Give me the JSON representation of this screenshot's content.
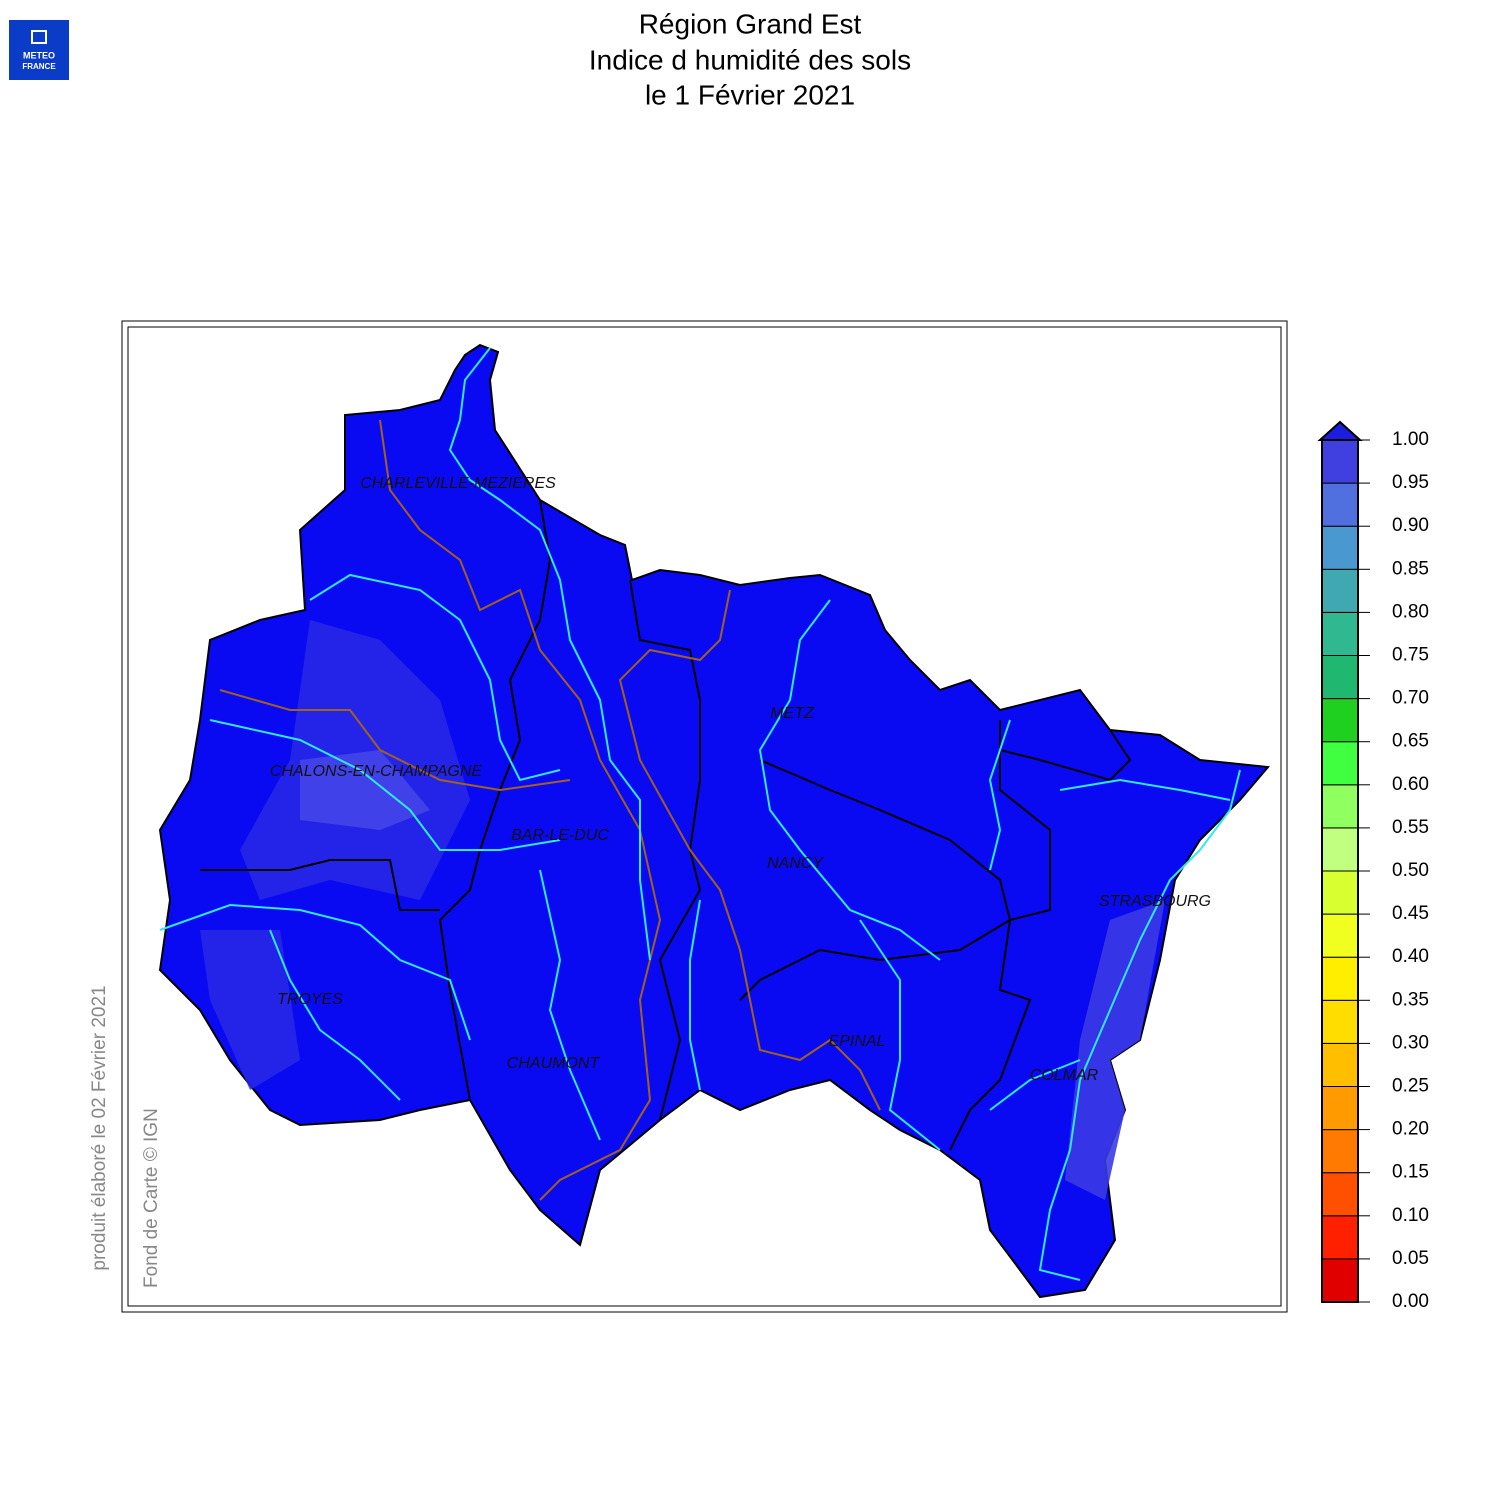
{
  "logo": [
    "METEO",
    "FRANCE"
  ],
  "title": [
    "Région Grand Est",
    "Indice d humidité des sols",
    "le 1 Février 2021"
  ],
  "cities": [
    "CHARLEVILLE-MEZIERES",
    "METZ",
    "CHALONS-EN-CHAMPAGNE",
    "BAR-LE-DUC",
    "NANCY",
    "STRASBOURG",
    "TROYES",
    "CHAUMONT",
    "EPINAL",
    "COLMAR"
  ],
  "credits": [
    "produit élaboré le 02 Février 2021",
    "Fond de Carte © IGN"
  ],
  "colorbar": {
    "ticks": [
      {
        "value": 0,
        "label": "0.00"
      },
      {
        "value": 0.05,
        "label": "0.05"
      },
      {
        "value": 0.1,
        "label": "0.10"
      },
      {
        "value": 0.15,
        "label": "0.15"
      },
      {
        "value": 0.2,
        "label": "0.20"
      },
      {
        "value": 0.25,
        "label": "0.25"
      },
      {
        "value": 0.3,
        "label": "0.30"
      },
      {
        "value": 0.35,
        "label": "0.35"
      },
      {
        "value": 0.4,
        "label": "0.40"
      },
      {
        "value": 0.45,
        "label": "0.45"
      },
      {
        "value": 0.5,
        "label": "0.50"
      },
      {
        "value": 0.55,
        "label": "0.55"
      },
      {
        "value": 0.6,
        "label": "0.60"
      },
      {
        "value": 0.65,
        "label": "0.65"
      },
      {
        "value": 0.7,
        "label": "0.70"
      },
      {
        "value": 0.75,
        "label": "0.75"
      },
      {
        "value": 0.8,
        "label": "0.80"
      },
      {
        "value": 0.85,
        "label": "0.85"
      },
      {
        "value": 0.9,
        "label": "0.90"
      },
      {
        "value": 0.95,
        "label": "0.95"
      },
      {
        "value": 1,
        "label": "1.00"
      }
    ],
    "colors": [
      "#e00000",
      "#ff2000",
      "#ff5000",
      "#ff7a00",
      "#ff9a00",
      "#ffbe00",
      "#ffdd00",
      "#ffee00",
      "#f0ff20",
      "#d8ff30",
      "#c0ff80",
      "#90ff60",
      "#40ff40",
      "#20d020",
      "#20b870",
      "#30b890",
      "#40a8b0",
      "#4a98d0",
      "#5070e0",
      "#4040e0"
    ],
    "over_color": "#1d1de0"
  }
}
